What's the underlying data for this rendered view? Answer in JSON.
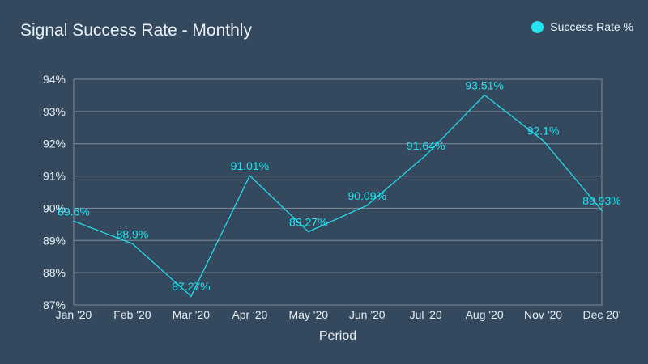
{
  "chart_data": {
    "type": "line",
    "title": "Signal Success Rate - Monthly",
    "xlabel": "Period",
    "ylabel": "",
    "categories": [
      "Jan '20",
      "Feb '20",
      "Mar '20",
      "Apr '20",
      "May '20",
      "Jun '20",
      "Jul '20",
      "Aug '20",
      "Nov '20",
      "Dec 20'"
    ],
    "series": [
      {
        "name": "Success Rate %",
        "values": [
          89.6,
          88.9,
          87.27,
          91.01,
          89.27,
          90.09,
          91.64,
          93.51,
          92.1,
          89.93
        ],
        "labels": [
          "89.6%",
          "88.9%",
          "87.27%",
          "91.01%",
          "89.27%",
          "90.09%",
          "91.64%",
          "93.51%",
          "92.1%",
          "89.93%"
        ],
        "color": "#22e3f0"
      }
    ],
    "ylim": [
      87,
      94
    ],
    "yticks": [
      "87%",
      "88%",
      "89%",
      "90%",
      "91%",
      "92%",
      "93%",
      "94%"
    ],
    "grid": true,
    "legend_position": "top-right"
  },
  "colors": {
    "background": "#34495e",
    "line": "#22e3f0",
    "grid": "#7f8c99",
    "text": "#e8eef3"
  }
}
